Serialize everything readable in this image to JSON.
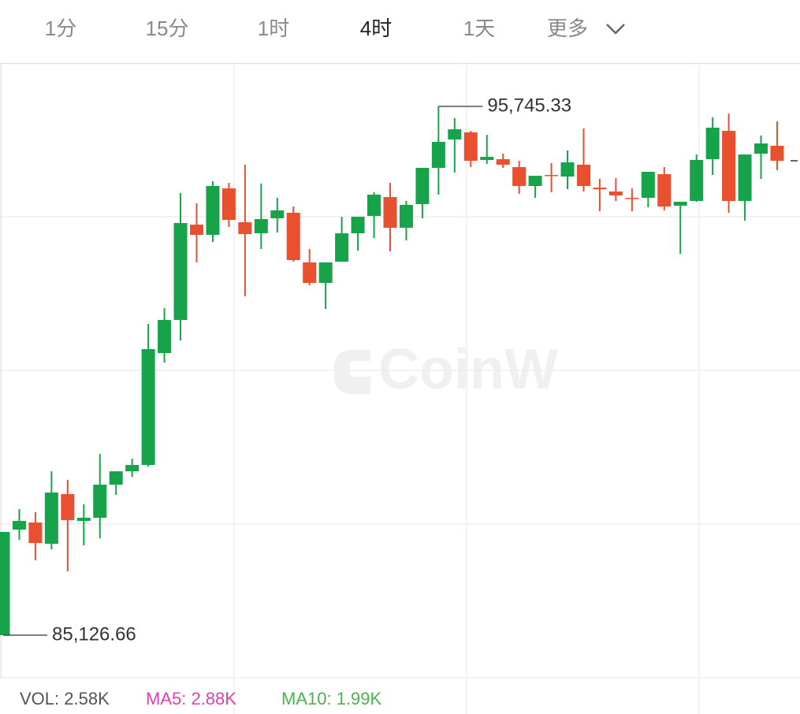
{
  "tabs": [
    "1分",
    "15分",
    "1时",
    "4时",
    "1天",
    "更多"
  ],
  "active_tab": 3,
  "watermark": "CoinW",
  "indicators": [
    {
      "label": "VOL: 2.58K",
      "color": "#555555"
    },
    {
      "label": "MA5: 2.88K",
      "color": "#e040b0"
    },
    {
      "label": "MA10: 1.99K",
      "color": "#4cb050"
    }
  ],
  "chart_data": {
    "type": "candlestick",
    "up_color": "#17a34a",
    "down_color": "#e8502f",
    "ylim": [
      84272,
      96584
    ],
    "open": [
      85127,
      87247,
      87389,
      86962,
      87959,
      87421,
      87484,
      88149,
      88418,
      88545,
      90792,
      91456,
      93371,
      93166,
      94099,
      93419,
      93197,
      93498,
      93609,
      92612,
      92200,
      92627,
      93197,
      93545,
      93925,
      93308,
      93783,
      94511,
      95080,
      95223,
      94669,
      94685,
      94526,
      94147,
      94368,
      94337,
      94574,
      94115,
      94036,
      93909,
      93909,
      94384,
      93751,
      93846,
      94685,
      95254,
      93846,
      94795,
      94954
    ],
    "high": [
      87200,
      87658,
      87595,
      88418,
      88244,
      87753,
      88766,
      88418,
      88671,
      91377,
      91694,
      94004,
      93799,
      94242,
      94210,
      94574,
      94194,
      93909,
      93735,
      92881,
      92612,
      93529,
      93529,
      94020,
      94210,
      93846,
      94511,
      95745.33,
      95508,
      95254,
      95175,
      94795,
      94653,
      94352,
      94606,
      94859,
      95302,
      94289,
      94305,
      94099,
      94432,
      94526,
      93830,
      94780,
      95523,
      95603,
      94780,
      95159,
      95444
    ],
    "low": [
      85126.66,
      87041,
      86630,
      86851,
      86408,
      86930,
      87073,
      87943,
      88307,
      88513,
      90602,
      91045,
      92612,
      93023,
      93324,
      91931,
      92881,
      93213,
      92627,
      92153,
      91678,
      92627,
      92849,
      93102,
      92833,
      93055,
      93498,
      93973,
      94416,
      94526,
      94590,
      94511,
      93988,
      93909,
      94020,
      94083,
      94036,
      93640,
      93846,
      93640,
      93719,
      93656,
      92786,
      93830,
      94368,
      93609,
      93450,
      94289,
      94463
    ],
    "close": [
      87200,
      87421,
      86978,
      87991,
      87437,
      87484,
      88149,
      88418,
      88545,
      90871,
      91456,
      93403,
      93166,
      94147,
      93466,
      93181,
      93482,
      93656,
      92659,
      92200,
      92612,
      93197,
      93529,
      93973,
      93308,
      93767,
      94511,
      95033,
      95286,
      94653,
      94732,
      94574,
      94147,
      94352,
      94352,
      94621,
      94147,
      94083,
      93957,
      93893,
      94432,
      93735,
      93830,
      94669,
      95318,
      93846,
      94780,
      95001,
      94653
    ],
    "annotations": [
      {
        "value": 95745.33,
        "label": "95,745.33"
      },
      {
        "value": 85126.66,
        "label": "85,126.66"
      }
    ]
  }
}
